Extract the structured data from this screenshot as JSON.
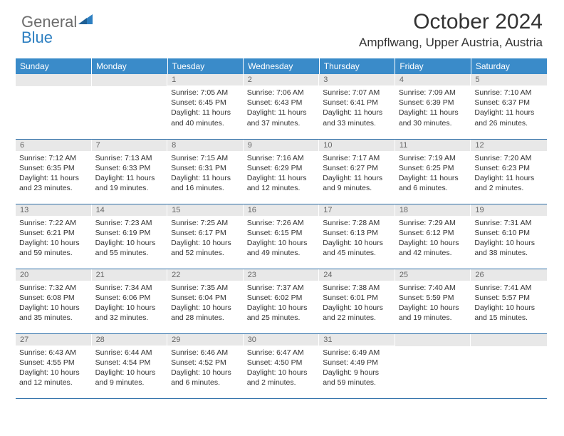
{
  "logo": {
    "general": "General",
    "blue": "Blue"
  },
  "title": "October 2024",
  "location": "Ampflwang, Upper Austria, Austria",
  "colors": {
    "header_bg": "#3a8bc9",
    "header_text": "#ffffff",
    "daynum_bg": "#e8e8e8",
    "daynum_text": "#666666",
    "cell_border": "#2e6fa8",
    "body_text": "#333333",
    "logo_general": "#6c6c6c",
    "logo_blue": "#2d7fc1"
  },
  "dow": [
    "Sunday",
    "Monday",
    "Tuesday",
    "Wednesday",
    "Thursday",
    "Friday",
    "Saturday"
  ],
  "weeks": [
    [
      {
        "n": "",
        "sr": "",
        "ss": "",
        "dl": ""
      },
      {
        "n": "",
        "sr": "",
        "ss": "",
        "dl": ""
      },
      {
        "n": "1",
        "sr": "Sunrise: 7:05 AM",
        "ss": "Sunset: 6:45 PM",
        "dl": "Daylight: 11 hours and 40 minutes."
      },
      {
        "n": "2",
        "sr": "Sunrise: 7:06 AM",
        "ss": "Sunset: 6:43 PM",
        "dl": "Daylight: 11 hours and 37 minutes."
      },
      {
        "n": "3",
        "sr": "Sunrise: 7:07 AM",
        "ss": "Sunset: 6:41 PM",
        "dl": "Daylight: 11 hours and 33 minutes."
      },
      {
        "n": "4",
        "sr": "Sunrise: 7:09 AM",
        "ss": "Sunset: 6:39 PM",
        "dl": "Daylight: 11 hours and 30 minutes."
      },
      {
        "n": "5",
        "sr": "Sunrise: 7:10 AM",
        "ss": "Sunset: 6:37 PM",
        "dl": "Daylight: 11 hours and 26 minutes."
      }
    ],
    [
      {
        "n": "6",
        "sr": "Sunrise: 7:12 AM",
        "ss": "Sunset: 6:35 PM",
        "dl": "Daylight: 11 hours and 23 minutes."
      },
      {
        "n": "7",
        "sr": "Sunrise: 7:13 AM",
        "ss": "Sunset: 6:33 PM",
        "dl": "Daylight: 11 hours and 19 minutes."
      },
      {
        "n": "8",
        "sr": "Sunrise: 7:15 AM",
        "ss": "Sunset: 6:31 PM",
        "dl": "Daylight: 11 hours and 16 minutes."
      },
      {
        "n": "9",
        "sr": "Sunrise: 7:16 AM",
        "ss": "Sunset: 6:29 PM",
        "dl": "Daylight: 11 hours and 12 minutes."
      },
      {
        "n": "10",
        "sr": "Sunrise: 7:17 AM",
        "ss": "Sunset: 6:27 PM",
        "dl": "Daylight: 11 hours and 9 minutes."
      },
      {
        "n": "11",
        "sr": "Sunrise: 7:19 AM",
        "ss": "Sunset: 6:25 PM",
        "dl": "Daylight: 11 hours and 6 minutes."
      },
      {
        "n": "12",
        "sr": "Sunrise: 7:20 AM",
        "ss": "Sunset: 6:23 PM",
        "dl": "Daylight: 11 hours and 2 minutes."
      }
    ],
    [
      {
        "n": "13",
        "sr": "Sunrise: 7:22 AM",
        "ss": "Sunset: 6:21 PM",
        "dl": "Daylight: 10 hours and 59 minutes."
      },
      {
        "n": "14",
        "sr": "Sunrise: 7:23 AM",
        "ss": "Sunset: 6:19 PM",
        "dl": "Daylight: 10 hours and 55 minutes."
      },
      {
        "n": "15",
        "sr": "Sunrise: 7:25 AM",
        "ss": "Sunset: 6:17 PM",
        "dl": "Daylight: 10 hours and 52 minutes."
      },
      {
        "n": "16",
        "sr": "Sunrise: 7:26 AM",
        "ss": "Sunset: 6:15 PM",
        "dl": "Daylight: 10 hours and 49 minutes."
      },
      {
        "n": "17",
        "sr": "Sunrise: 7:28 AM",
        "ss": "Sunset: 6:13 PM",
        "dl": "Daylight: 10 hours and 45 minutes."
      },
      {
        "n": "18",
        "sr": "Sunrise: 7:29 AM",
        "ss": "Sunset: 6:12 PM",
        "dl": "Daylight: 10 hours and 42 minutes."
      },
      {
        "n": "19",
        "sr": "Sunrise: 7:31 AM",
        "ss": "Sunset: 6:10 PM",
        "dl": "Daylight: 10 hours and 38 minutes."
      }
    ],
    [
      {
        "n": "20",
        "sr": "Sunrise: 7:32 AM",
        "ss": "Sunset: 6:08 PM",
        "dl": "Daylight: 10 hours and 35 minutes."
      },
      {
        "n": "21",
        "sr": "Sunrise: 7:34 AM",
        "ss": "Sunset: 6:06 PM",
        "dl": "Daylight: 10 hours and 32 minutes."
      },
      {
        "n": "22",
        "sr": "Sunrise: 7:35 AM",
        "ss": "Sunset: 6:04 PM",
        "dl": "Daylight: 10 hours and 28 minutes."
      },
      {
        "n": "23",
        "sr": "Sunrise: 7:37 AM",
        "ss": "Sunset: 6:02 PM",
        "dl": "Daylight: 10 hours and 25 minutes."
      },
      {
        "n": "24",
        "sr": "Sunrise: 7:38 AM",
        "ss": "Sunset: 6:01 PM",
        "dl": "Daylight: 10 hours and 22 minutes."
      },
      {
        "n": "25",
        "sr": "Sunrise: 7:40 AM",
        "ss": "Sunset: 5:59 PM",
        "dl": "Daylight: 10 hours and 19 minutes."
      },
      {
        "n": "26",
        "sr": "Sunrise: 7:41 AM",
        "ss": "Sunset: 5:57 PM",
        "dl": "Daylight: 10 hours and 15 minutes."
      }
    ],
    [
      {
        "n": "27",
        "sr": "Sunrise: 6:43 AM",
        "ss": "Sunset: 4:55 PM",
        "dl": "Daylight: 10 hours and 12 minutes."
      },
      {
        "n": "28",
        "sr": "Sunrise: 6:44 AM",
        "ss": "Sunset: 4:54 PM",
        "dl": "Daylight: 10 hours and 9 minutes."
      },
      {
        "n": "29",
        "sr": "Sunrise: 6:46 AM",
        "ss": "Sunset: 4:52 PM",
        "dl": "Daylight: 10 hours and 6 minutes."
      },
      {
        "n": "30",
        "sr": "Sunrise: 6:47 AM",
        "ss": "Sunset: 4:50 PM",
        "dl": "Daylight: 10 hours and 2 minutes."
      },
      {
        "n": "31",
        "sr": "Sunrise: 6:49 AM",
        "ss": "Sunset: 4:49 PM",
        "dl": "Daylight: 9 hours and 59 minutes."
      },
      {
        "n": "",
        "sr": "",
        "ss": "",
        "dl": ""
      },
      {
        "n": "",
        "sr": "",
        "ss": "",
        "dl": ""
      }
    ]
  ]
}
